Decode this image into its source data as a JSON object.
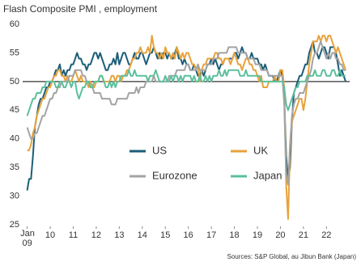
{
  "chart_data": {
    "type": "line",
    "title": "Flash Composite PMI , employment",
    "source": "Sources: S&P Global, au Jibun Bank (Japan)",
    "first_month_label": "Jan",
    "categories": [
      "09",
      null,
      null,
      null,
      null,
      null,
      null,
      null,
      null,
      null,
      null,
      null,
      "10",
      null,
      null,
      null,
      null,
      null,
      null,
      null,
      null,
      null,
      null,
      null,
      "11",
      null,
      null,
      null,
      null,
      null,
      null,
      null,
      null,
      null,
      null,
      null,
      "12",
      null,
      null,
      null,
      null,
      null,
      null,
      null,
      null,
      null,
      null,
      null,
      "13",
      null,
      null,
      null,
      null,
      null,
      null,
      null,
      null,
      null,
      null,
      null,
      "14",
      null,
      null,
      null,
      null,
      null,
      null,
      null,
      null,
      null,
      null,
      null,
      "15",
      null,
      null,
      null,
      null,
      null,
      null,
      null,
      null,
      null,
      null,
      null,
      "16",
      null,
      null,
      null,
      null,
      null,
      null,
      null,
      null,
      null,
      null,
      null,
      "17",
      null,
      null,
      null,
      null,
      null,
      null,
      null,
      null,
      null,
      null,
      null,
      "18",
      null,
      null,
      null,
      null,
      null,
      null,
      null,
      null,
      null,
      null,
      null,
      "19",
      null,
      null,
      null,
      null,
      null,
      null,
      null,
      null,
      null,
      null,
      null,
      "20",
      null,
      null,
      null,
      null,
      null,
      null,
      null,
      null,
      null,
      null,
      null,
      "21",
      null,
      null,
      null,
      null,
      null,
      null,
      null,
      null,
      null,
      null,
      null,
      "22",
      null,
      null,
      null,
      null,
      null,
      null,
      null,
      null,
      null,
      null
    ],
    "series": [
      {
        "name": "US",
        "color": "#1b5e78",
        "values": [
          31,
          33,
          33,
          37,
          42,
          44,
          46,
          47,
          47,
          48,
          49,
          49,
          50,
          50,
          51,
          52,
          52,
          53,
          51,
          52,
          51,
          52,
          52,
          53,
          53,
          54,
          55,
          54,
          54,
          53,
          53,
          52,
          53,
          53,
          54,
          55,
          55,
          54,
          55,
          54,
          53,
          52,
          52,
          53,
          53,
          54,
          53,
          55,
          53,
          54,
          55,
          55,
          54,
          53,
          53,
          54,
          55,
          54,
          54,
          55,
          55,
          54,
          53,
          54,
          55,
          55,
          56,
          55,
          54,
          55,
          54,
          55,
          55,
          54,
          55,
          54,
          54,
          55,
          56,
          54,
          54,
          53,
          54,
          53,
          53,
          52,
          52,
          53,
          52,
          51,
          51,
          52,
          51,
          52,
          53,
          53,
          54,
          53,
          54,
          53,
          52,
          53,
          53,
          54,
          54,
          54,
          54,
          54,
          55,
          55,
          54,
          55,
          56,
          55,
          55,
          54,
          54,
          55,
          54,
          54,
          54,
          53,
          53,
          52,
          53,
          52,
          51,
          51,
          51,
          50,
          50,
          51,
          52,
          51,
          47,
          37,
          33,
          35,
          43,
          48,
          49,
          50,
          51,
          51,
          52,
          53,
          53,
          55,
          56,
          57,
          55,
          55,
          54,
          55,
          56,
          56,
          55,
          54,
          56,
          56,
          56,
          55,
          53,
          51,
          52,
          51,
          50
        ]
      },
      {
        "name": "UK",
        "color": "#e8a23c",
        "values": [
          38,
          38,
          39,
          41,
          42,
          44,
          45,
          46,
          47,
          47,
          48,
          49,
          49,
          50,
          51,
          51,
          52,
          52,
          51,
          51,
          50,
          51,
          50,
          50,
          51,
          52,
          51,
          50,
          51,
          50,
          50,
          50,
          49,
          50,
          49,
          49,
          50,
          50,
          51,
          51,
          50,
          50,
          50,
          50,
          51,
          51,
          50,
          51,
          51,
          50,
          51,
          51,
          52,
          52,
          53,
          54,
          54,
          55,
          55,
          56,
          55,
          55,
          55,
          56,
          55,
          58,
          56,
          55,
          55,
          54,
          55,
          54,
          56,
          55,
          55,
          54,
          55,
          54,
          56,
          55,
          54,
          55,
          54,
          55,
          55,
          54,
          53,
          53,
          52,
          53,
          50,
          52,
          53,
          53,
          54,
          54,
          54,
          54,
          55,
          55,
          54,
          54,
          53,
          54,
          54,
          54,
          53,
          54,
          55,
          54,
          53,
          53,
          52,
          53,
          54,
          54,
          53,
          53,
          52,
          52,
          51,
          50,
          51,
          49,
          49,
          49,
          50,
          50,
          50,
          51,
          50,
          50,
          52,
          52,
          49,
          32,
          26,
          38,
          43,
          44,
          45,
          46,
          47,
          47,
          45,
          47,
          50,
          53,
          55,
          57,
          57,
          57,
          58,
          57,
          58,
          58,
          57,
          58,
          58,
          57,
          56,
          55,
          56,
          55,
          54,
          53,
          52
        ]
      },
      {
        "name": "Eurozone",
        "color": "#a3a3a3",
        "values": [
          42,
          41,
          40,
          40,
          41,
          41,
          42,
          43,
          44,
          44,
          45,
          46,
          47,
          47,
          48,
          48,
          49,
          49,
          50,
          50,
          50,
          50,
          51,
          51,
          51,
          52,
          52,
          52,
          52,
          51,
          51,
          50,
          50,
          49,
          49,
          48,
          48,
          48,
          48,
          47,
          47,
          47,
          47,
          47,
          46,
          46,
          46,
          47,
          47,
          47,
          47,
          47,
          47,
          48,
          48,
          48,
          48,
          49,
          48,
          49,
          49,
          49,
          50,
          50,
          50,
          50,
          51,
          50,
          50,
          50,
          50,
          50,
          50,
          50,
          51,
          51,
          51,
          51,
          52,
          52,
          52,
          52,
          52,
          53,
          53,
          52,
          52,
          52,
          52,
          53,
          52,
          52,
          52,
          52,
          53,
          53,
          53,
          54,
          54,
          54,
          55,
          55,
          55,
          55,
          55,
          56,
          56,
          56,
          56,
          56,
          55,
          55,
          55,
          55,
          55,
          54,
          54,
          54,
          54,
          53,
          53,
          53,
          52,
          52,
          52,
          52,
          51,
          51,
          51,
          51,
          51,
          51,
          51,
          51,
          46,
          34,
          32,
          39,
          44,
          46,
          47,
          47,
          48,
          48,
          48,
          49,
          50,
          51,
          52,
          54,
          55,
          55,
          56,
          57,
          56,
          55,
          54,
          55,
          54,
          55,
          55,
          54,
          54,
          53,
          53,
          52,
          52
        ]
      },
      {
        "name": "Japan",
        "color": "#5cbf9b",
        "values": [
          44,
          45,
          46,
          47,
          47,
          48,
          48,
          48,
          49,
          49,
          50,
          50,
          50,
          50,
          50,
          49,
          49,
          50,
          50,
          49,
          49,
          50,
          50,
          49,
          50,
          50,
          48,
          47,
          48,
          49,
          49,
          50,
          50,
          49,
          49,
          50,
          50,
          50,
          51,
          51,
          50,
          49,
          49,
          50,
          49,
          50,
          49,
          50,
          50,
          51,
          51,
          51,
          51,
          52,
          51,
          51,
          52,
          51,
          51,
          51,
          51,
          51,
          51,
          50,
          51,
          51,
          51,
          52,
          51,
          50,
          50,
          50,
          51,
          50,
          50,
          51,
          50,
          51,
          51,
          50,
          51,
          50,
          51,
          51,
          51,
          51,
          50,
          51,
          50,
          50,
          51,
          50,
          50,
          51,
          50,
          51,
          50,
          51,
          51,
          51,
          52,
          51,
          51,
          52,
          51,
          52,
          52,
          52,
          52,
          52,
          52,
          51,
          51,
          51,
          52,
          51,
          51,
          51,
          51,
          51,
          51,
          51,
          50,
          50,
          50,
          50,
          50,
          50,
          50,
          50,
          50,
          50,
          50,
          50,
          49,
          46,
          45,
          46,
          47,
          48,
          49,
          49,
          50,
          50,
          50,
          50,
          51,
          51,
          51,
          51,
          52,
          51,
          51,
          51,
          52,
          52,
          51,
          51,
          51,
          52,
          52,
          51,
          51,
          52,
          51,
          51,
          51
        ]
      }
    ],
    "reference_line": 50,
    "ylim": [
      25,
      60
    ],
    "yticks": [
      25,
      30,
      35,
      40,
      45,
      50,
      55,
      60
    ]
  }
}
